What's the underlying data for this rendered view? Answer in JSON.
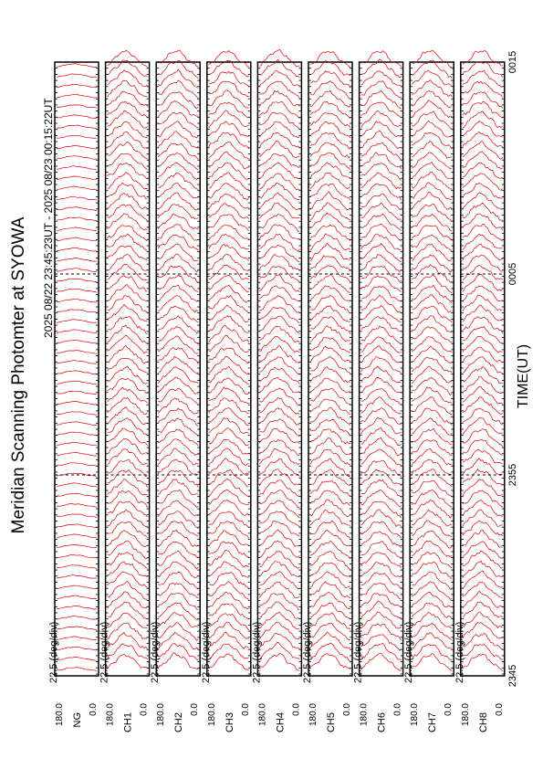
{
  "title": "Meridian Scanning Photomter at SYOWA",
  "time_range": "2025 08/22 23:45:23UT - 2025 08/23 00:15:22UT",
  "chart_data": {
    "type": "line",
    "xlabel": "TIME(UT)",
    "x_ticks": [
      "2345",
      "2355",
      "0005",
      "0015"
    ],
    "scale_label": "22.5 (deg/div)",
    "y_range": [
      0.0,
      180.0
    ],
    "y_ticks": [
      "0.0",
      "180.0"
    ],
    "line_color": "#e00000",
    "panels": [
      {
        "id": "1",
        "label": "NG"
      },
      {
        "id": "2",
        "label": "CH1"
      },
      {
        "id": "3",
        "label": "CH2"
      },
      {
        "id": "4",
        "label": "CH3"
      },
      {
        "id": "5",
        "label": "CH4"
      },
      {
        "id": "6",
        "label": "CH5"
      },
      {
        "id": "7",
        "label": "CH6"
      },
      {
        "id": "8",
        "label": "CH7"
      },
      {
        "id": "9",
        "label": "CH8"
      }
    ]
  }
}
